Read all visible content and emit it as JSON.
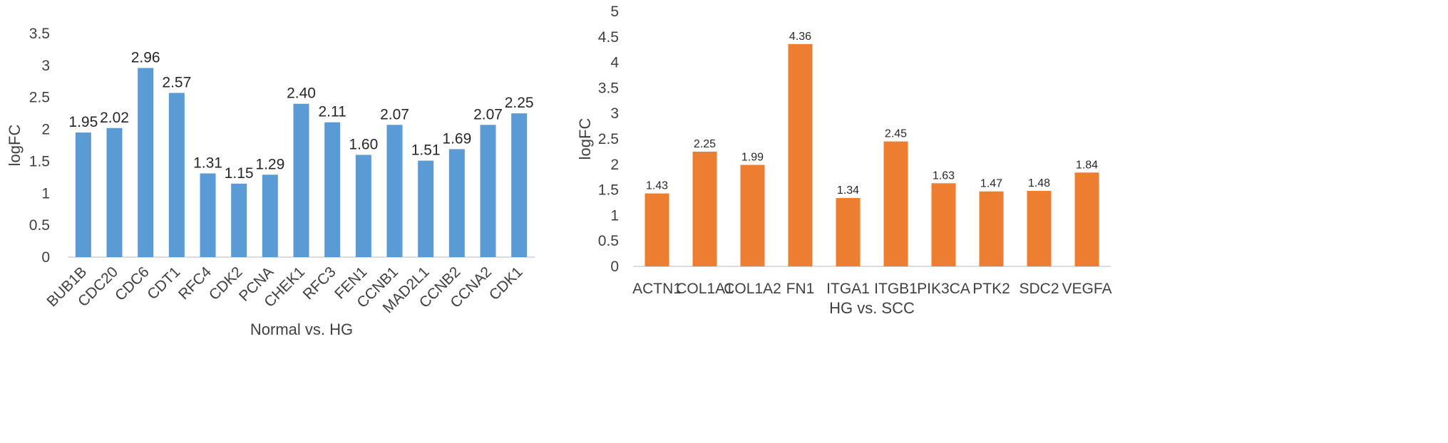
{
  "chart_data": [
    {
      "type": "bar",
      "categories": [
        "BUB1B",
        "CDC20",
        "CDC6",
        "CDT1",
        "RFC4",
        "CDK2",
        "PCNA",
        "CHEK1",
        "RFC3",
        "FEN1",
        "CCNB1",
        "MAD2L1",
        "CCNB2",
        "CCNA2",
        "CDK1"
      ],
      "values": [
        1.95,
        2.02,
        2.96,
        2.57,
        1.31,
        1.15,
        1.29,
        2.4,
        2.11,
        1.6,
        2.07,
        1.51,
        1.69,
        2.07,
        2.25
      ],
      "data_labels": [
        "1.95",
        "2.02",
        "2.96",
        "2.57",
        "1.31",
        "1.15",
        "1.29",
        "2.40",
        "2.11",
        "1.60",
        "2.07",
        "1.51",
        "1.69",
        "2.07",
        "2.25"
      ],
      "xlabel": "Normal vs. HG",
      "ylabel": "logFC",
      "ylim": [
        0,
        3.5
      ],
      "yticks": [
        "0",
        "0.5",
        "1",
        "1.5",
        "2",
        "2.5",
        "3",
        "3.5"
      ],
      "x_tick_rotation": "45 degrees",
      "grid": false,
      "color": "#5B9BD5"
    },
    {
      "type": "bar",
      "categories": [
        "ACTN1",
        "COL1A1",
        "COL1A2",
        "FN1",
        "ITGA1",
        "ITGB1",
        "PIK3CA",
        "PTK2",
        "SDC2",
        "VEGFA"
      ],
      "values": [
        1.43,
        2.25,
        1.99,
        4.36,
        1.34,
        2.45,
        1.63,
        1.47,
        1.48,
        1.84
      ],
      "data_labels": [
        "1.43",
        "2.25",
        "1.99",
        "4.36",
        "1.34",
        "2.45",
        "1.63",
        "1.47",
        "1.48",
        "1.84"
      ],
      "xlabel": "HG  vs. SCC",
      "ylabel": "logFC",
      "ylim": [
        0,
        5
      ],
      "yticks": [
        "0",
        "0.5",
        "1",
        "1.5",
        "2",
        "2.5",
        "3",
        "3.5",
        "4",
        "4.5",
        "5"
      ],
      "grid": false,
      "color": "#ED7D31"
    }
  ]
}
